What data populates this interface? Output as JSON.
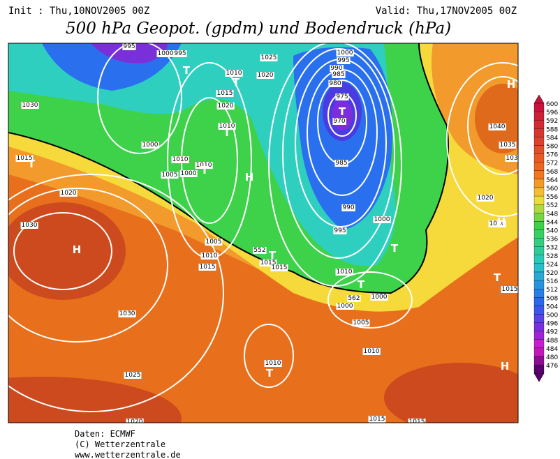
{
  "header": {
    "init": "Init : Thu,10NOV2005 00Z",
    "valid": "Valid: Thu,17NOV2005 00Z",
    "title": "500 hPa Geopot. (gpdm) und Bodendruck (hPa)"
  },
  "map": {
    "labels": [
      "995",
      "1000",
      "995",
      "T",
      "1025",
      "1000",
      "995",
      "990",
      "985",
      "980",
      "975",
      "T",
      "970",
      "1010",
      "1020",
      "T",
      "1015",
      "1020",
      "1010",
      "T",
      "1000",
      "1010",
      "1010",
      "1005",
      "1000",
      "T",
      "H",
      "985",
      "990",
      "995",
      "1000",
      "1005",
      "1010",
      "1015",
      "552",
      "1015",
      "1015",
      "T",
      "T",
      "1010",
      "T",
      "562",
      "1000",
      "1000",
      "1005",
      "1010",
      "1010",
      "T",
      "H",
      "1030",
      "1020",
      "1015",
      "T",
      "1030",
      "1030",
      "1025",
      "1020",
      "1015",
      "1015",
      "H",
      "1040",
      "1035",
      "103",
      "1020",
      "1010",
      "H",
      "T",
      "1015",
      "H"
    ]
  },
  "colorbar": {
    "ticks": [
      600,
      596,
      592,
      588,
      584,
      580,
      576,
      572,
      568,
      564,
      560,
      556,
      552,
      548,
      544,
      540,
      536,
      532,
      528,
      524,
      520,
      516,
      512,
      508,
      504,
      500,
      496,
      492,
      488,
      484,
      480,
      476
    ]
  },
  "footer": [
    "Daten: ECMWF",
    "(C) Wetterzentrale",
    "www.wetterzentrale.de"
  ]
}
